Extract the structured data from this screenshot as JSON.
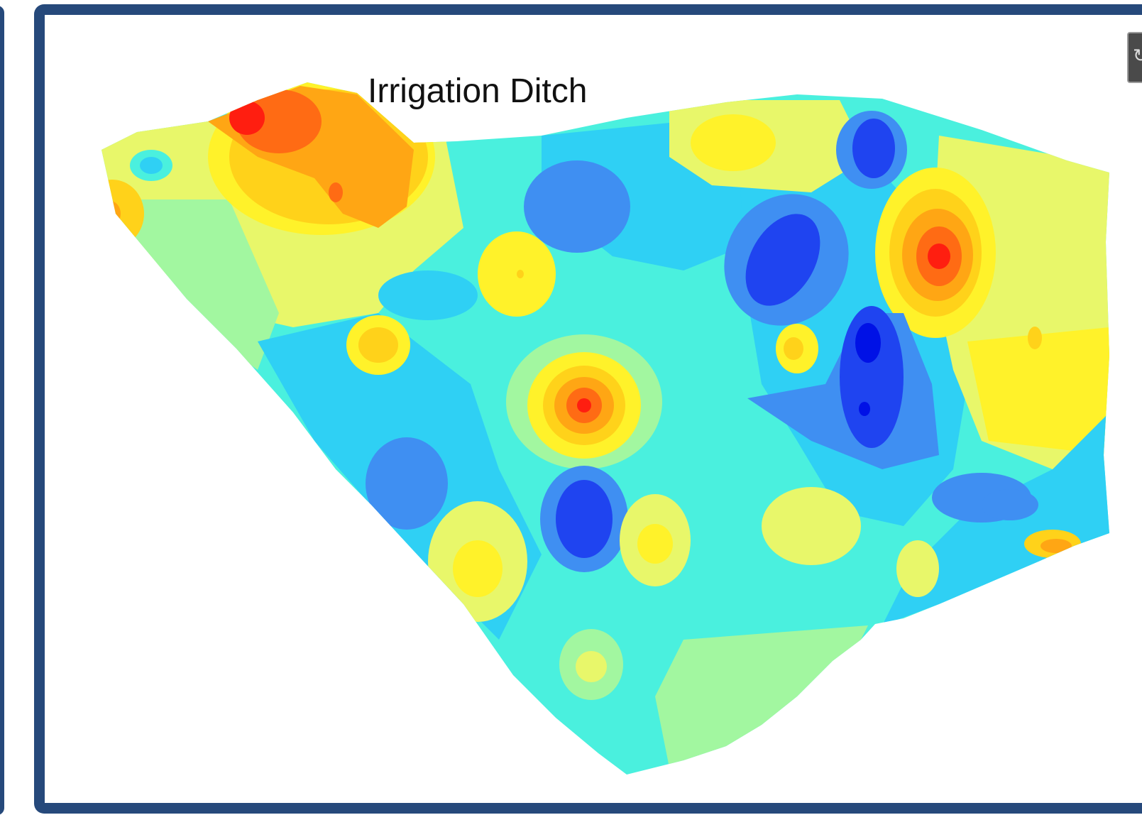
{
  "map": {
    "label": "Irrigation Ditch"
  },
  "colors": {
    "frame": "#26497b",
    "palette": [
      "#3f8ff2",
      "#2fd0f4",
      "#4af0de",
      "#a2f7a0",
      "#e8f76a",
      "#fff22a",
      "#ffd21a",
      "#ffa614",
      "#ff6b14",
      "#ff1e10",
      "#0011e6",
      "#1f44f0"
    ]
  },
  "icons": {
    "corner": "refresh-icon"
  }
}
